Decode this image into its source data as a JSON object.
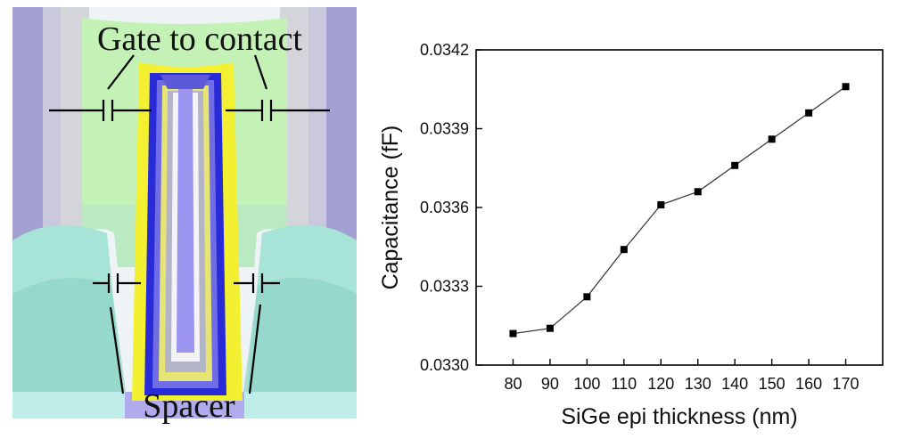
{
  "structure": {
    "label_gate_contact": "Gate to contact",
    "label_spacer": "Spacer",
    "colors": {
      "gate_green": "#c3f1b6",
      "high_k_blue": "#2a2bd8",
      "liner_yellow": "#f3f032",
      "metal_violet": "#9b95ef",
      "sd_teal": "#9fe3d8",
      "contact_gray": "#d6d6dc",
      "outer_violet": "#9c9ad0"
    }
  },
  "chart_data": {
    "type": "line",
    "title": "",
    "xlabel": "SiGe epi thickness (nm)",
    "ylabel": "Capacitance (fF)",
    "x": [
      80,
      90,
      100,
      110,
      120,
      130,
      140,
      150,
      160,
      170
    ],
    "series": [
      {
        "name": "",
        "values": [
          0.03312,
          0.03314,
          0.03326,
          0.03344,
          0.03361,
          0.03366,
          0.03376,
          0.03386,
          0.03396,
          0.03406
        ]
      }
    ],
    "xlim": [
      70,
      180
    ],
    "ylim": [
      0.033,
      0.0342
    ],
    "xticks": [
      "80",
      "90",
      "100",
      "110",
      "120",
      "130",
      "140",
      "150",
      "160",
      "170"
    ],
    "yticks": [
      "0.0330",
      "0.0333",
      "0.0336",
      "0.0339",
      "0.0342"
    ],
    "marker": "square",
    "line_color": "#333333",
    "marker_color": "#000000",
    "grid": false
  }
}
